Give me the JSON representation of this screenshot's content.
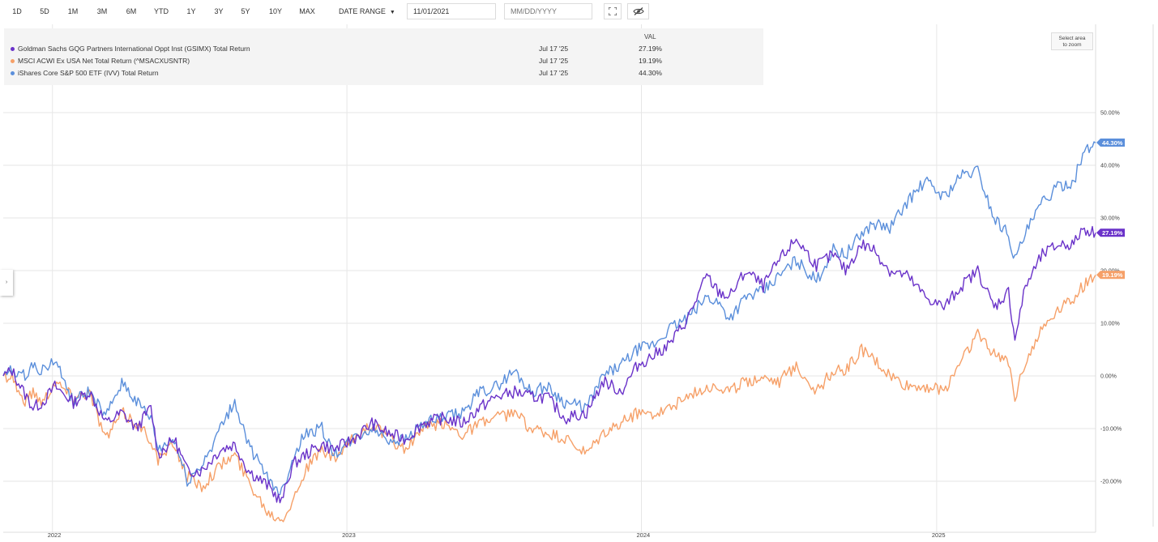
{
  "toolbar": {
    "ranges": [
      "1D",
      "5D",
      "1M",
      "3M",
      "6M",
      "YTD",
      "1Y",
      "3Y",
      "5Y",
      "10Y",
      "MAX"
    ],
    "date_range_label": "DATE RANGE",
    "start_date": "11/01/2021",
    "end_date_placeholder": "MM/DD/YYYY",
    "icons": {
      "expand": "expand-icon",
      "hide": "eye-slash-icon"
    }
  },
  "legend": {
    "val_header": "VAL",
    "items": [
      {
        "name": "Goldman Sachs GQG Partners International Oppt Inst (GSIMX) Total Return",
        "date": "Jul 17 '25",
        "value": "27.19%",
        "color": "#6a32c9"
      },
      {
        "name": "MSCI ACWI Ex USA Net Total Return (^MSACXUSNTR)",
        "date": "Jul 17 '25",
        "value": "19.19%",
        "color": "#f6a068"
      },
      {
        "name": "iShares Core S&P 500 ETF (IVV) Total Return",
        "date": "Jul 17 '25",
        "value": "44.30%",
        "color": "#5b8fdb"
      }
    ]
  },
  "zoom_hint": {
    "line1": "Select area",
    "line2": "to zoom"
  },
  "side_toggle": "›",
  "chart_data": {
    "type": "line",
    "y_unit": "%",
    "ylim": [
      -28,
      62
    ],
    "xlim": [
      "2021-11-01",
      "2025-07-17"
    ],
    "y_ticks": [
      -20,
      -10,
      0,
      10,
      20,
      30,
      40,
      50
    ],
    "y_tick_labels": [
      "-20.00%",
      "-10.00%",
      "0.00%",
      "10.00%",
      "20.00%",
      "30.00%",
      "40.00%",
      "50.00%"
    ],
    "x_ticks": [
      {
        "date": "2022-01-01",
        "label": "2022"
      },
      {
        "date": "2023-01-01",
        "label": "2023"
      },
      {
        "date": "2024-01-01",
        "label": "2024"
      },
      {
        "date": "2025-01-01",
        "label": "2025"
      }
    ],
    "grid": true,
    "legend_position": "top-left",
    "series": [
      {
        "name": "Goldman Sachs GQG Partners International Oppt Inst (GSIMX) Total Return",
        "color": "#6a32c9",
        "end_label": "27.19%",
        "points": [
          [
            "2021-11-01",
            0
          ],
          [
            "2021-11-12",
            1
          ],
          [
            "2021-11-26",
            -3
          ],
          [
            "2021-12-08",
            -6
          ],
          [
            "2021-12-20",
            -5
          ],
          [
            "2022-01-04",
            -2
          ],
          [
            "2022-01-27",
            -5
          ],
          [
            "2022-02-16",
            -3
          ],
          [
            "2022-03-08",
            -9
          ],
          [
            "2022-03-28",
            -7
          ],
          [
            "2022-04-15",
            -10
          ],
          [
            "2022-05-03",
            -6
          ],
          [
            "2022-05-12",
            -15
          ],
          [
            "2022-06-01",
            -12
          ],
          [
            "2022-06-17",
            -18
          ],
          [
            "2022-07-05",
            -18
          ],
          [
            "2022-07-28",
            -14
          ],
          [
            "2022-08-15",
            -13
          ],
          [
            "2022-09-01",
            -18
          ],
          [
            "2022-09-26",
            -21
          ],
          [
            "2022-10-12",
            -24
          ],
          [
            "2022-10-25",
            -17
          ],
          [
            "2022-11-10",
            -15
          ],
          [
            "2022-12-01",
            -13
          ],
          [
            "2022-12-16",
            -14
          ],
          [
            "2023-01-09",
            -12
          ],
          [
            "2023-02-01",
            -9
          ],
          [
            "2023-02-22",
            -11
          ],
          [
            "2023-03-15",
            -12
          ],
          [
            "2023-04-05",
            -9
          ],
          [
            "2023-05-01",
            -8
          ],
          [
            "2023-05-24",
            -9
          ],
          [
            "2023-06-15",
            -6
          ],
          [
            "2023-07-05",
            -4
          ],
          [
            "2023-07-28",
            -3
          ],
          [
            "2023-08-17",
            -4
          ],
          [
            "2023-09-06",
            -4
          ],
          [
            "2023-09-28",
            -8
          ],
          [
            "2023-10-25",
            -7
          ],
          [
            "2023-11-15",
            -1
          ],
          [
            "2023-12-07",
            -3
          ],
          [
            "2023-12-27",
            2
          ],
          [
            "2024-01-17",
            4
          ],
          [
            "2024-02-05",
            6
          ],
          [
            "2024-02-28",
            11
          ],
          [
            "2024-03-22",
            19
          ],
          [
            "2024-04-05",
            16
          ],
          [
            "2024-04-19",
            15
          ],
          [
            "2024-05-10",
            20
          ],
          [
            "2024-05-31",
            17
          ],
          [
            "2024-06-20",
            22
          ],
          [
            "2024-07-11",
            26
          ],
          [
            "2024-08-05",
            21
          ],
          [
            "2024-08-26",
            23
          ],
          [
            "2024-09-10",
            20
          ],
          [
            "2024-09-30",
            25
          ],
          [
            "2024-10-15",
            24
          ],
          [
            "2024-11-04",
            20
          ],
          [
            "2024-11-25",
            19
          ],
          [
            "2024-12-18",
            15
          ],
          [
            "2025-01-10",
            13
          ],
          [
            "2025-01-31",
            17
          ],
          [
            "2025-02-21",
            20
          ],
          [
            "2025-03-13",
            13
          ],
          [
            "2025-03-31",
            16
          ],
          [
            "2025-04-08",
            7
          ],
          [
            "2025-04-21",
            17
          ],
          [
            "2025-05-12",
            23
          ],
          [
            "2025-06-02",
            25
          ],
          [
            "2025-06-20",
            25
          ],
          [
            "2025-07-01",
            28
          ],
          [
            "2025-07-17",
            27.19
          ]
        ]
      },
      {
        "name": "MSCI ACWI Ex USA Net Total Return (^MSACXUSNTR)",
        "color": "#f6a068",
        "end_label": "19.19%",
        "points": [
          [
            "2021-11-01",
            0
          ],
          [
            "2021-11-12",
            0
          ],
          [
            "2021-11-26",
            -5
          ],
          [
            "2021-12-08",
            -3
          ],
          [
            "2021-12-20",
            -5
          ],
          [
            "2022-01-04",
            -1
          ],
          [
            "2022-01-27",
            -4
          ],
          [
            "2022-02-16",
            -3
          ],
          [
            "2022-03-08",
            -12
          ],
          [
            "2022-03-28",
            -7
          ],
          [
            "2022-04-15",
            -9
          ],
          [
            "2022-05-03",
            -12
          ],
          [
            "2022-05-12",
            -16
          ],
          [
            "2022-06-01",
            -13
          ],
          [
            "2022-06-17",
            -19
          ],
          [
            "2022-07-05",
            -21
          ],
          [
            "2022-07-28",
            -17
          ],
          [
            "2022-08-15",
            -15
          ],
          [
            "2022-09-01",
            -20
          ],
          [
            "2022-09-26",
            -26
          ],
          [
            "2022-10-12",
            -27
          ],
          [
            "2022-10-25",
            -24
          ],
          [
            "2022-11-10",
            -18
          ],
          [
            "2022-12-01",
            -14
          ],
          [
            "2022-12-16",
            -16
          ],
          [
            "2023-01-09",
            -12
          ],
          [
            "2023-02-01",
            -9
          ],
          [
            "2023-02-22",
            -12
          ],
          [
            "2023-03-15",
            -14
          ],
          [
            "2023-04-05",
            -10
          ],
          [
            "2023-05-01",
            -9
          ],
          [
            "2023-05-24",
            -11
          ],
          [
            "2023-06-15",
            -9
          ],
          [
            "2023-07-05",
            -8
          ],
          [
            "2023-07-28",
            -7
          ],
          [
            "2023-08-17",
            -10
          ],
          [
            "2023-09-06",
            -11
          ],
          [
            "2023-09-28",
            -12
          ],
          [
            "2023-10-25",
            -15
          ],
          [
            "2023-11-15",
            -11
          ],
          [
            "2023-12-07",
            -9
          ],
          [
            "2023-12-27",
            -7
          ],
          [
            "2024-01-17",
            -7
          ],
          [
            "2024-02-05",
            -6
          ],
          [
            "2024-02-28",
            -4
          ],
          [
            "2024-03-22",
            -2
          ],
          [
            "2024-04-05",
            -2
          ],
          [
            "2024-04-19",
            -3
          ],
          [
            "2024-05-10",
            -1
          ],
          [
            "2024-05-31",
            0
          ],
          [
            "2024-06-20",
            -1
          ],
          [
            "2024-07-11",
            2
          ],
          [
            "2024-08-05",
            -3
          ],
          [
            "2024-08-26",
            1
          ],
          [
            "2024-09-10",
            1
          ],
          [
            "2024-09-30",
            5
          ],
          [
            "2024-10-15",
            3
          ],
          [
            "2024-11-04",
            0
          ],
          [
            "2024-11-25",
            -2
          ],
          [
            "2024-12-18",
            -2
          ],
          [
            "2025-01-10",
            -3
          ],
          [
            "2025-01-31",
            3
          ],
          [
            "2025-02-21",
            8
          ],
          [
            "2025-03-13",
            4
          ],
          [
            "2025-03-31",
            3
          ],
          [
            "2025-04-08",
            -4
          ],
          [
            "2025-04-21",
            3
          ],
          [
            "2025-05-12",
            9
          ],
          [
            "2025-06-02",
            13
          ],
          [
            "2025-06-20",
            15
          ],
          [
            "2025-07-01",
            17
          ],
          [
            "2025-07-17",
            19.19
          ]
        ]
      },
      {
        "name": "iShares Core S&P 500 ETF (IVV) Total Return",
        "color": "#5b8fdb",
        "end_label": "44.30%",
        "points": [
          [
            "2021-11-01",
            0
          ],
          [
            "2021-11-12",
            1
          ],
          [
            "2021-11-26",
            0
          ],
          [
            "2021-12-08",
            2
          ],
          [
            "2021-12-20",
            1
          ],
          [
            "2022-01-04",
            3
          ],
          [
            "2022-01-27",
            -5
          ],
          [
            "2022-02-16",
            -3
          ],
          [
            "2022-03-08",
            -8
          ],
          [
            "2022-03-28",
            -1
          ],
          [
            "2022-04-15",
            -5
          ],
          [
            "2022-05-03",
            -8
          ],
          [
            "2022-05-12",
            -14
          ],
          [
            "2022-06-01",
            -12
          ],
          [
            "2022-06-17",
            -20
          ],
          [
            "2022-07-05",
            -17
          ],
          [
            "2022-07-28",
            -10
          ],
          [
            "2022-08-15",
            -5
          ],
          [
            "2022-09-01",
            -13
          ],
          [
            "2022-09-26",
            -20
          ],
          [
            "2022-10-12",
            -22
          ],
          [
            "2022-10-25",
            -16
          ],
          [
            "2022-11-10",
            -11
          ],
          [
            "2022-12-01",
            -10
          ],
          [
            "2022-12-16",
            -15
          ],
          [
            "2023-01-09",
            -12
          ],
          [
            "2023-02-01",
            -10
          ],
          [
            "2023-02-22",
            -12
          ],
          [
            "2023-03-15",
            -12
          ],
          [
            "2023-04-05",
            -9
          ],
          [
            "2023-05-01",
            -8
          ],
          [
            "2023-05-24",
            -7
          ],
          [
            "2023-06-15",
            -3
          ],
          [
            "2023-07-05",
            -2
          ],
          [
            "2023-07-28",
            1
          ],
          [
            "2023-08-17",
            -3
          ],
          [
            "2023-09-06",
            -2
          ],
          [
            "2023-09-28",
            -5
          ],
          [
            "2023-10-25",
            -6
          ],
          [
            "2023-11-15",
            0
          ],
          [
            "2023-12-07",
            2
          ],
          [
            "2023-12-27",
            5
          ],
          [
            "2024-01-17",
            6
          ],
          [
            "2024-02-05",
            9
          ],
          [
            "2024-02-28",
            11
          ],
          [
            "2024-03-22",
            15
          ],
          [
            "2024-04-05",
            14
          ],
          [
            "2024-04-19",
            11
          ],
          [
            "2024-05-10",
            15
          ],
          [
            "2024-05-31",
            16
          ],
          [
            "2024-06-20",
            19
          ],
          [
            "2024-07-11",
            22
          ],
          [
            "2024-08-05",
            18
          ],
          [
            "2024-08-26",
            24
          ],
          [
            "2024-09-10",
            23
          ],
          [
            "2024-09-30",
            27
          ],
          [
            "2024-10-15",
            29
          ],
          [
            "2024-11-04",
            28
          ],
          [
            "2024-11-25",
            33
          ],
          [
            "2024-12-18",
            37
          ],
          [
            "2025-01-10",
            34
          ],
          [
            "2025-01-31",
            38
          ],
          [
            "2025-02-21",
            39
          ],
          [
            "2025-03-13",
            30
          ],
          [
            "2025-03-31",
            27
          ],
          [
            "2025-04-08",
            22
          ],
          [
            "2025-04-21",
            27
          ],
          [
            "2025-05-12",
            33
          ],
          [
            "2025-06-02",
            36
          ],
          [
            "2025-06-20",
            37
          ],
          [
            "2025-07-01",
            42
          ],
          [
            "2025-07-17",
            44.3
          ]
        ]
      }
    ]
  }
}
